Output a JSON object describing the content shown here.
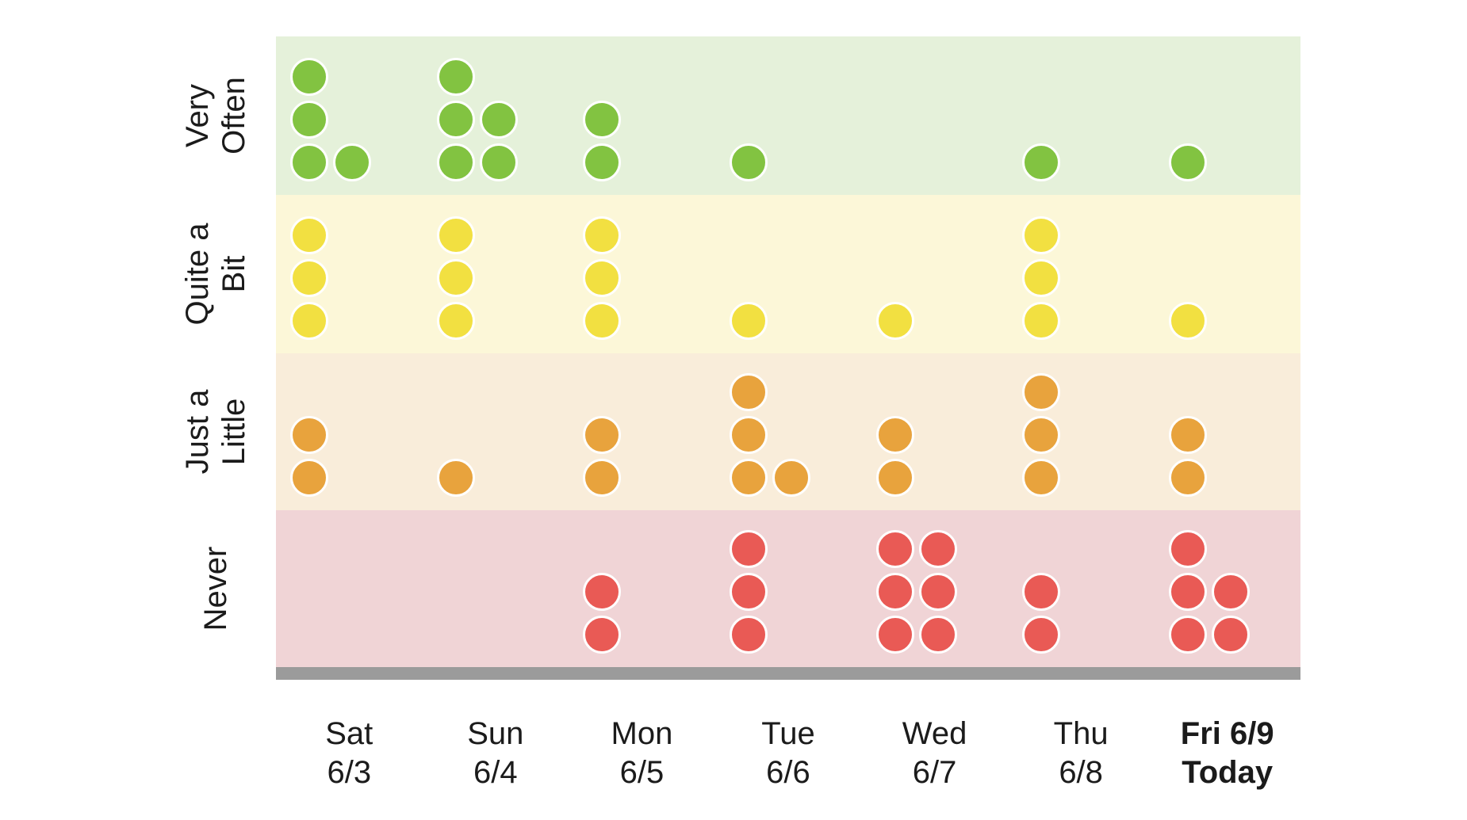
{
  "chart_data": {
    "type": "dot-matrix",
    "description": "Daily frequency dot chart: one colored dot per observation, stacked in piles per day within four frequency bands",
    "x_categories": [
      "Sat 6/3",
      "Sun 6/4",
      "Mon 6/5",
      "Tue 6/6",
      "Wed 6/7",
      "Thu 6/8",
      "Fri 6/9 Today"
    ],
    "x_labels": [
      {
        "line1": "Sat",
        "line2": "6/3",
        "emphasis": false
      },
      {
        "line1": "Sun",
        "line2": "6/4",
        "emphasis": false
      },
      {
        "line1": "Mon",
        "line2": "6/5",
        "emphasis": false
      },
      {
        "line1": "Tue",
        "line2": "6/6",
        "emphasis": false
      },
      {
        "line1": "Wed",
        "line2": "6/7",
        "emphasis": false
      },
      {
        "line1": "Thu",
        "line2": "6/8",
        "emphasis": false
      },
      {
        "line1": "Fri 6/9",
        "line2": "Today",
        "emphasis": true
      }
    ],
    "y_categories": [
      {
        "label": "Very Often",
        "label_lines": "Very\nOften"
      },
      {
        "label": "Quite a Bit",
        "label_lines": "Quite a\nBit"
      },
      {
        "label": "Just a Little",
        "label_lines": "Just a\nLittle"
      },
      {
        "label": "Never",
        "label_lines": "Never"
      }
    ],
    "series": [
      {
        "name": "Very Often",
        "counts_per_day": [
          4,
          5,
          2,
          1,
          0,
          1,
          1
        ]
      },
      {
        "name": "Quite a Bit",
        "counts_per_day": [
          3,
          3,
          3,
          1,
          1,
          3,
          1
        ]
      },
      {
        "name": "Just a Little",
        "counts_per_day": [
          2,
          1,
          2,
          4,
          2,
          3,
          2
        ]
      },
      {
        "name": "Never",
        "counts_per_day": [
          0,
          0,
          2,
          3,
          6,
          2,
          5
        ]
      }
    ],
    "legend": "none",
    "grid": "banded rows only"
  },
  "colors": {
    "band_backgrounds": [
      "#e5f1da",
      "#fcf7d8",
      "#f9edda",
      "#f0d4d6"
    ],
    "dot_fills": [
      "#82c341",
      "#f2e041",
      "#e8a33d",
      "#e95a55"
    ],
    "dot_ring": "#ffffff",
    "axis_bar": "#9b9b9b",
    "text": "#1b1b1b",
    "background": "#ffffff"
  }
}
